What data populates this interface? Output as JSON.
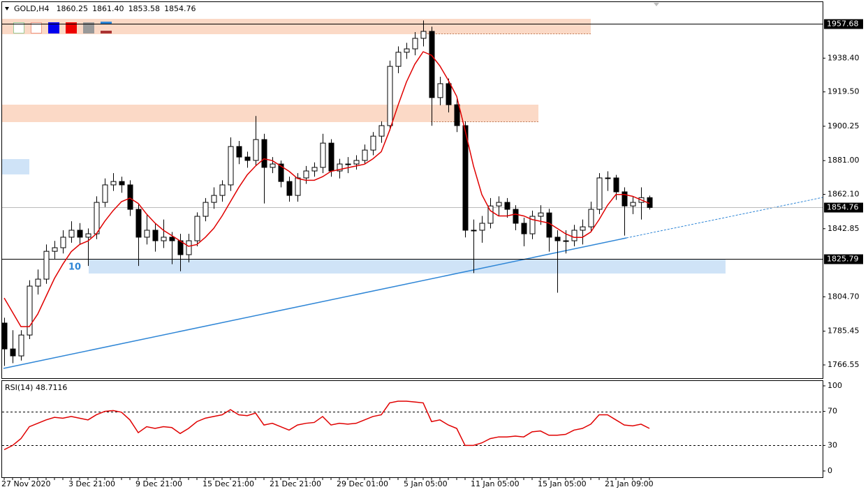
{
  "chart_data": [
    {
      "type": "candlestick",
      "title": "GOLD,H4",
      "header_labels": [
        "1860.25",
        "1861.40",
        "1853.58",
        "1854.76"
      ],
      "categories": [
        "27 Nov 2020",
        null,
        null,
        null,
        null,
        null,
        null,
        null,
        "3 Dec 21:00",
        null,
        null,
        null,
        null,
        null,
        null,
        null,
        "9 Dec 21:00",
        null,
        null,
        null,
        null,
        null,
        null,
        null,
        "15 Dec 21:00",
        null,
        null,
        null,
        null,
        null,
        null,
        null,
        "21 Dec 21:00",
        null,
        null,
        null,
        null,
        null,
        null,
        null,
        "29 Dec 01:00",
        null,
        null,
        null,
        null,
        null,
        null,
        null,
        "5 Jan 05:00",
        null,
        null,
        null,
        null,
        null,
        null,
        null,
        "11 Jan 05:00",
        null,
        null,
        null,
        null,
        null,
        null,
        null,
        "15 Jan 05:00",
        null,
        null,
        null,
        null,
        null,
        null,
        null,
        "21 Jan 09:00",
        null,
        null,
        null,
        null,
        null
      ],
      "ohlc": [
        [
          1790.0,
          1793.0,
          1766.0,
          1775.5
        ],
        [
          1775.5,
          1786.0,
          1767.5,
          1771.6
        ],
        [
          1771.6,
          1786.0,
          1769.0,
          1783.3
        ],
        [
          1783.3,
          1814.0,
          1781.0,
          1810.7
        ],
        [
          1810.7,
          1820.0,
          1806.0,
          1814.6
        ],
        [
          1814.6,
          1834.0,
          1812.0,
          1830.2
        ],
        [
          1830.2,
          1836.0,
          1826.0,
          1832.2
        ],
        [
          1832.2,
          1842.0,
          1829.0,
          1838.1
        ],
        [
          1838.1,
          1847.0,
          1835.0,
          1842.0
        ],
        [
          1842.0,
          1846.0,
          1834.0,
          1838.1
        ],
        [
          1838.1,
          1843.0,
          1822.0,
          1840.0
        ],
        [
          1840.0,
          1861.0,
          1837.0,
          1857.6
        ],
        [
          1857.6,
          1871.0,
          1855.0,
          1867.4
        ],
        [
          1867.4,
          1874.0,
          1864.0,
          1869.3
        ],
        [
          1869.3,
          1872.0,
          1863.0,
          1867.4
        ],
        [
          1867.4,
          1870.0,
          1850.0,
          1853.7
        ],
        [
          1853.7,
          1857.0,
          1822.0,
          1838.1
        ],
        [
          1838.1,
          1851.0,
          1834.0,
          1842.0
        ],
        [
          1842.0,
          1846.0,
          1830.0,
          1836.1
        ],
        [
          1836.1,
          1848.0,
          1832.0,
          1838.1
        ],
        [
          1838.1,
          1841.0,
          1823.0,
          1836.1
        ],
        [
          1836.1,
          1840.0,
          1819.0,
          1828.3
        ],
        [
          1828.3,
          1840.0,
          1824.0,
          1836.1
        ],
        [
          1836.1,
          1852.0,
          1833.0,
          1849.8
        ],
        [
          1849.8,
          1860.0,
          1847.0,
          1857.6
        ],
        [
          1857.6,
          1866.0,
          1854.0,
          1861.5
        ],
        [
          1861.5,
          1870.0,
          1858.0,
          1867.4
        ],
        [
          1867.4,
          1894.0,
          1864.0,
          1888.9
        ],
        [
          1888.9,
          1892.0,
          1879.0,
          1883.0
        ],
        [
          1883.0,
          1886.0,
          1877.0,
          1881.1
        ],
        [
          1881.1,
          1906.0,
          1878.0,
          1892.8
        ],
        [
          1892.8,
          1896.0,
          1857.0,
          1877.2
        ],
        [
          1877.2,
          1883.0,
          1874.0,
          1879.1
        ],
        [
          1879.1,
          1881.0,
          1866.0,
          1869.3
        ],
        [
          1869.3,
          1872.0,
          1858.0,
          1861.5
        ],
        [
          1861.5,
          1874.0,
          1858.0,
          1871.3
        ],
        [
          1871.3,
          1878.0,
          1868.0,
          1875.2
        ],
        [
          1875.2,
          1880.0,
          1872.0,
          1877.2
        ],
        [
          1877.2,
          1896.0,
          1874.0,
          1890.8
        ],
        [
          1890.8,
          1893.0,
          1872.0,
          1875.2
        ],
        [
          1875.2,
          1882.0,
          1871.0,
          1879.1
        ],
        [
          1879.1,
          1883.0,
          1874.0,
          1879.1
        ],
        [
          1879.1,
          1884.0,
          1876.0,
          1881.1
        ],
        [
          1881.1,
          1890.0,
          1879.0,
          1886.9
        ],
        [
          1886.9,
          1897.0,
          1884.0,
          1894.7
        ],
        [
          1894.7,
          1903.0,
          1891.0,
          1900.6
        ],
        [
          1900.6,
          1937.0,
          1898.0,
          1933.8
        ],
        [
          1933.8,
          1945.0,
          1930.0,
          1941.7
        ],
        [
          1941.7,
          1947.0,
          1938.0,
          1943.6
        ],
        [
          1943.6,
          1953.0,
          1940.0,
          1949.5
        ],
        [
          1949.5,
          1959.5,
          1945.0,
          1953.4
        ],
        [
          1953.4,
          1956.0,
          1900.5,
          1916.3
        ],
        [
          1916.3,
          1928.0,
          1912.0,
          1924.1
        ],
        [
          1924.1,
          1927.0,
          1908.0,
          1912.3
        ],
        [
          1912.3,
          1916.0,
          1897.0,
          1900.6
        ],
        [
          1900.6,
          1903.0,
          1838.0,
          1842.0
        ],
        [
          1842.0,
          1848.0,
          1818.0,
          1842.0
        ],
        [
          1842.0,
          1850.0,
          1835.0,
          1845.9
        ],
        [
          1845.9,
          1860.0,
          1843.0,
          1855.6
        ],
        [
          1855.6,
          1861.0,
          1850.0,
          1857.6
        ],
        [
          1857.6,
          1860.0,
          1849.0,
          1853.7
        ],
        [
          1853.7,
          1856.0,
          1842.0,
          1845.9
        ],
        [
          1845.9,
          1849.0,
          1833.0,
          1840.0
        ],
        [
          1840.0,
          1853.0,
          1837.0,
          1849.8
        ],
        [
          1849.8,
          1856.0,
          1845.0,
          1851.7
        ],
        [
          1851.7,
          1854.0,
          1830.0,
          1838.1
        ],
        [
          1838.1,
          1842.0,
          1807.0,
          1836.1
        ],
        [
          1836.1,
          1842.0,
          1829.0,
          1836.1
        ],
        [
          1836.1,
          1845.0,
          1833.0,
          1842.0
        ],
        [
          1842.0,
          1848.0,
          1834.0,
          1843.9
        ],
        [
          1843.9,
          1858.0,
          1841.0,
          1853.7
        ],
        [
          1853.7,
          1874.0,
          1851.0,
          1871.3
        ],
        [
          1871.3,
          1875.0,
          1864.0,
          1871.3
        ],
        [
          1871.3,
          1873.0,
          1859.0,
          1863.5
        ],
        [
          1863.5,
          1866.0,
          1839.0,
          1855.6
        ],
        [
          1855.6,
          1861.0,
          1851.0,
          1857.6
        ],
        [
          1857.6,
          1866.0,
          1848.0,
          1860.25
        ],
        [
          1860.25,
          1861.4,
          1853.58,
          1854.76
        ]
      ],
      "ma": {
        "color": "#e00000",
        "values": [
          1804,
          1796,
          1788,
          1788,
          1795,
          1805,
          1815,
          1823,
          1830,
          1834,
          1836,
          1840,
          1847,
          1853,
          1858,
          1860,
          1857,
          1851,
          1846,
          1842,
          1839,
          1836,
          1833,
          1834,
          1838,
          1843,
          1850,
          1858,
          1866,
          1873,
          1878,
          1882,
          1881,
          1878,
          1875,
          1871,
          1870,
          1870,
          1872,
          1875,
          1876,
          1877,
          1878,
          1879,
          1882,
          1886,
          1898,
          1912,
          1925,
          1935,
          1942,
          1940,
          1934,
          1926,
          1917,
          1898,
          1878,
          1862,
          1853,
          1850,
          1850,
          1851,
          1850,
          1848,
          1847,
          1846,
          1843,
          1840,
          1838,
          1838,
          1841,
          1848,
          1856,
          1862,
          1862,
          1861,
          1859,
          1857
        ]
      },
      "ylim": [
        1759.12,
        1970.19
      ],
      "yticks": [
        {
          "value": 1938.4,
          "label": "1938.40"
        },
        {
          "value": 1919.5,
          "label": "1919.50"
        },
        1900.25,
        {
          "value": 1881,
          "label": "1881.00"
        },
        {
          "value": 1862.1,
          "label": "1862.10"
        },
        1842.85,
        {
          "value": 1804.7,
          "label": "1804.70"
        },
        1785.45,
        1766.55
      ],
      "levels": [
        1957.68,
        1825.79,
        1854.76
      ],
      "annotations": [
        "10"
      ]
    },
    {
      "type": "line",
      "title": "RSI(14) 48.7116",
      "color": "#e00000",
      "values": [
        25,
        30,
        38,
        52,
        56,
        60,
        63,
        62,
        64,
        62,
        60,
        66,
        70,
        71,
        69,
        60,
        45,
        52,
        50,
        52,
        51,
        44,
        50,
        58,
        62,
        64,
        66,
        72,
        66,
        65,
        68,
        54,
        56,
        52,
        48,
        54,
        56,
        57,
        64,
        54,
        56,
        55,
        56,
        60,
        64,
        66,
        80,
        82,
        82,
        81,
        80,
        58,
        60,
        54,
        50,
        30,
        30,
        33,
        38,
        40,
        40,
        41,
        40,
        46,
        47,
        42,
        42,
        43,
        48,
        50,
        55,
        66,
        66,
        60,
        54,
        53,
        55,
        50
      ],
      "ylim": [
        -7.38,
        106.56
      ],
      "yticks": [
        100,
        70,
        30,
        0
      ],
      "levels": [
        70,
        30
      ]
    }
  ]
}
